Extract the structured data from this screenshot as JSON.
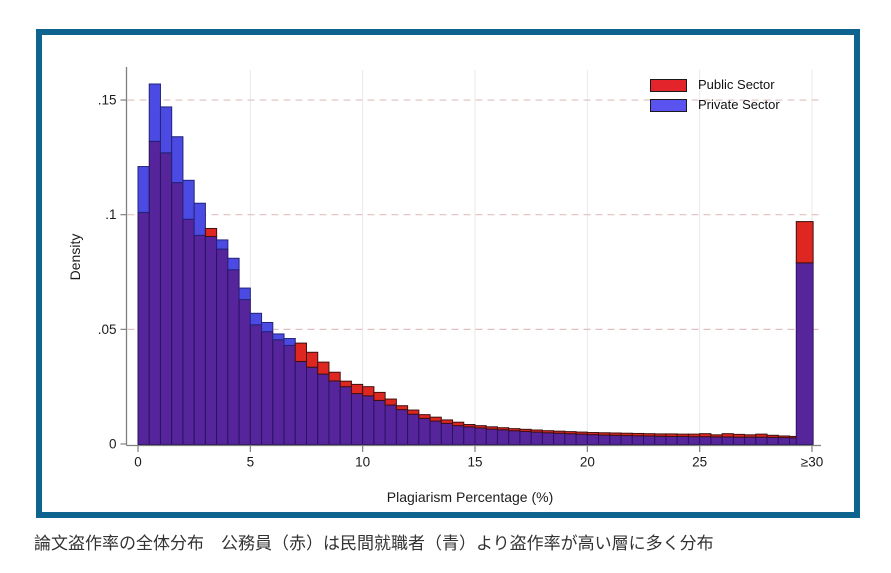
{
  "frame": {
    "border_color": "#0f648f",
    "background": "#ffffff"
  },
  "chart": {
    "y_axis": {
      "title": "Density",
      "tick_labels": [
        "0",
        ".05",
        ".1",
        ".15"
      ],
      "tick_values": [
        0,
        0.05,
        0.1,
        0.15
      ]
    },
    "x_axis": {
      "title": "Plagiarism Percentage (%)",
      "tick_labels": [
        "0",
        "5",
        "10",
        "15",
        "20",
        "25",
        "≥30"
      ],
      "tick_values": [
        0,
        5,
        10,
        15,
        20,
        25,
        30
      ]
    },
    "legend": [
      {
        "label": "Public Sector",
        "color": "#e3252b"
      },
      {
        "label": "Private Sector",
        "color": "#5b53f0"
      }
    ],
    "colors": {
      "public_fill": "#de2721",
      "public_stroke": "#40100f",
      "private_fill": "#4b4be4",
      "private_stroke": "#23237a",
      "overlap_fill": "#56259c",
      "overlap_stroke": "#2a1262",
      "axis_line": "#808080",
      "tick_label": "#1c1c1c",
      "h_gridline": "#dfc0c0",
      "v_gridline": "#e9e9e9"
    }
  },
  "chart_data": {
    "type": "bar",
    "subtype": "overlaid-histogram",
    "title": "",
    "xlabel": "Plagiarism Percentage (%)",
    "ylabel": "Density",
    "xlim": [
      0,
      30.5
    ],
    "ylim": [
      0,
      0.16
    ],
    "grid": true,
    "legend_position": "top-right",
    "bin_width": 0.5,
    "bin_left_edges": [
      0,
      0.5,
      1,
      1.5,
      2,
      2.5,
      3,
      3.5,
      4,
      4.5,
      5,
      5.5,
      6,
      6.5,
      7,
      7.5,
      8,
      8.5,
      9,
      9.5,
      10,
      10.5,
      11,
      11.5,
      12,
      12.5,
      13,
      13.5,
      14,
      14.5,
      15,
      15.5,
      16,
      16.5,
      17,
      17.5,
      18,
      18.5,
      19,
      19.5,
      20,
      20.5,
      21,
      21.5,
      22,
      22.5,
      23,
      23.5,
      24,
      24.5,
      25,
      25.5,
      26,
      26.5,
      27,
      27.5,
      28,
      28.5,
      29
    ],
    "series": [
      {
        "name": "Public Sector",
        "values": [
          0.101,
          0.132,
          0.127,
          0.114,
          0.098,
          0.091,
          0.094,
          0.085,
          0.076,
          0.063,
          0.052,
          0.049,
          0.0455,
          0.043,
          0.044,
          0.04,
          0.0357,
          0.0313,
          0.0274,
          0.026,
          0.025,
          0.0225,
          0.0196,
          0.0167,
          0.0148,
          0.0128,
          0.0117,
          0.0105,
          0.0095,
          0.0085,
          0.008,
          0.0075,
          0.0071,
          0.0067,
          0.0064,
          0.0061,
          0.0058,
          0.0056,
          0.0054,
          0.0052,
          0.005,
          0.0049,
          0.0048,
          0.0047,
          0.0046,
          0.0045,
          0.0044,
          0.0044,
          0.0043,
          0.0043,
          0.0045,
          0.004,
          0.0045,
          0.0042,
          0.004,
          0.0043,
          0.0038,
          0.0035,
          0.0033
        ]
      },
      {
        "name": "Private Sector",
        "values": [
          0.121,
          0.157,
          0.147,
          0.134,
          0.115,
          0.105,
          0.0905,
          0.089,
          0.081,
          0.068,
          0.057,
          0.053,
          0.048,
          0.046,
          0.036,
          0.0335,
          0.0305,
          0.0275,
          0.025,
          0.022,
          0.021,
          0.019,
          0.017,
          0.015,
          0.013,
          0.0112,
          0.01,
          0.009,
          0.008,
          0.0075,
          0.007,
          0.0065,
          0.0062,
          0.0058,
          0.0055,
          0.0052,
          0.0049,
          0.0047,
          0.0045,
          0.0043,
          0.0041,
          0.0039,
          0.0038,
          0.0037,
          0.0036,
          0.0035,
          0.0034,
          0.0033,
          0.0033,
          0.0032,
          0.0032,
          0.0031,
          0.0031,
          0.003,
          0.003,
          0.003,
          0.0029,
          0.0028,
          0.0027
        ]
      }
    ],
    "topcoded_bin": {
      "label": "≥30",
      "public": 0.097,
      "private": 0.079
    }
  },
  "caption": {
    "text": "論文盗作率の全体分布　公務員（赤）は民間就職者（青）より盗作率が高い層に多く分布"
  }
}
